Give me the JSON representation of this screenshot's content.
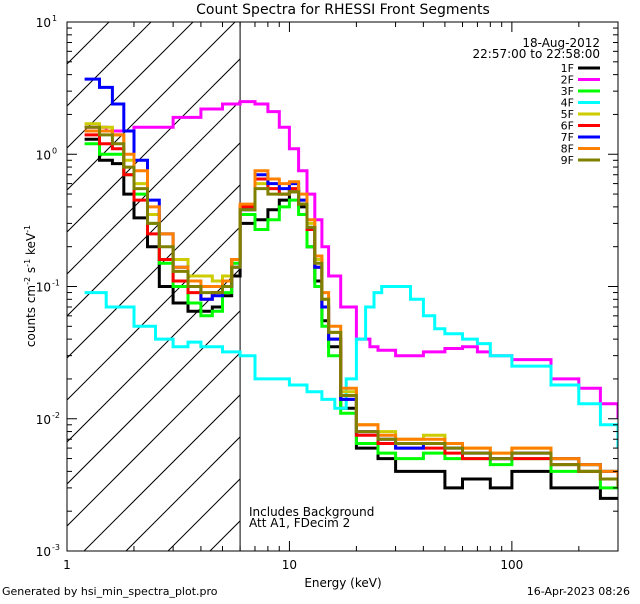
{
  "chart_data": {
    "type": "line",
    "title": "Count Spectra for RHESSI Front Segments",
    "xlabel": "Energy (keV)",
    "ylabel": {
      "base": "counts cm",
      "exp1": "-2",
      "mid1": " s",
      "exp2": "-1",
      "mid2": " keV",
      "exp3": "-1"
    },
    "x_scale": "log",
    "y_scale": "log",
    "xlim": [
      1,
      300
    ],
    "ylim": [
      0.001,
      10
    ],
    "x_ticks": [
      {
        "v": 1,
        "label": "1"
      },
      {
        "v": 10,
        "label": "10"
      },
      {
        "v": 100,
        "label": "100"
      }
    ],
    "y_ticks": [
      {
        "v": 0.001,
        "base": "10",
        "exp": "-3"
      },
      {
        "v": 0.01,
        "base": "10",
        "exp": "-2"
      },
      {
        "v": 0.1,
        "base": "10",
        "exp": "-1"
      },
      {
        "v": 1,
        "base": "10",
        "exp": "0"
      },
      {
        "v": 10,
        "base": "10",
        "exp": "1"
      }
    ],
    "date": "18-Aug-2012",
    "time_range": "22:57:00 to 22:58:00",
    "attenuator_line_keV": 6,
    "annotations": [
      "Includes Background",
      "Att A1, FDecim 2"
    ],
    "footer_left": "Generated by hsi_min_spectra_plot.pro",
    "footer_right": "16-Apr-2023 08:26",
    "series": [
      {
        "name": "1F",
        "color": "#000000",
        "x": [
          1.2,
          1.4,
          1.6,
          1.8,
          2.0,
          2.3,
          2.6,
          3.0,
          3.5,
          4.0,
          4.5,
          5.0,
          5.5,
          6.0,
          7.0,
          8.0,
          9.0,
          10.0,
          11,
          12,
          13,
          14,
          15,
          17,
          20,
          25,
          30,
          40,
          50,
          60,
          80,
          100,
          150,
          200,
          250,
          300
        ],
        "y": [
          1.3,
          0.9,
          0.85,
          0.5,
          0.33,
          0.2,
          0.1,
          0.075,
          0.065,
          0.065,
          0.07,
          0.085,
          0.12,
          0.3,
          0.32,
          0.38,
          0.45,
          0.52,
          0.4,
          0.2,
          0.11,
          0.055,
          0.035,
          0.012,
          0.006,
          0.005,
          0.004,
          0.004,
          0.003,
          0.0035,
          0.003,
          0.004,
          0.003,
          0.003,
          0.0025,
          0.0025
        ]
      },
      {
        "name": "2F",
        "color": "#ff00ff",
        "x": [
          1.2,
          1.5,
          2.0,
          3.0,
          4.0,
          5.0,
          6.0,
          7.0,
          8.0,
          9.0,
          10.0,
          11,
          12,
          13,
          14,
          15,
          17,
          20,
          23,
          25,
          30,
          40,
          50,
          60,
          70,
          80,
          100,
          150,
          200,
          250,
          300
        ],
        "y": [
          1.6,
          1.5,
          1.6,
          1.9,
          2.2,
          2.4,
          2.5,
          2.4,
          2.1,
          1.6,
          1.1,
          0.75,
          0.5,
          0.32,
          0.2,
          0.12,
          0.07,
          0.04,
          0.035,
          0.033,
          0.03,
          0.032,
          0.034,
          0.035,
          0.032,
          0.03,
          0.028,
          0.02,
          0.017,
          0.013,
          0.01
        ]
      },
      {
        "name": "3F",
        "color": "#00ff00",
        "x": [
          1.2,
          1.4,
          1.6,
          1.8,
          2.0,
          2.3,
          2.6,
          3.0,
          3.5,
          4.0,
          4.5,
          5.0,
          5.5,
          6.0,
          7.0,
          8.0,
          9.0,
          10.0,
          11,
          12,
          13,
          14,
          15,
          17,
          20,
          25,
          30,
          40,
          50,
          60,
          80,
          100,
          150,
          200,
          250,
          300
        ],
        "y": [
          1.2,
          1.0,
          1.0,
          0.7,
          0.5,
          0.3,
          0.15,
          0.1,
          0.075,
          0.06,
          0.065,
          0.09,
          0.15,
          0.35,
          0.27,
          0.32,
          0.4,
          0.45,
          0.35,
          0.2,
          0.1,
          0.05,
          0.03,
          0.011,
          0.0065,
          0.0055,
          0.005,
          0.0055,
          0.005,
          0.005,
          0.0045,
          0.005,
          0.004,
          0.004,
          0.003,
          0.003
        ]
      },
      {
        "name": "4F",
        "color": "#00ffff",
        "x": [
          1.2,
          1.5,
          2.0,
          2.5,
          3.0,
          3.5,
          4.0,
          5.0,
          6.0,
          7.0,
          8.0,
          10.0,
          12,
          14,
          16,
          18,
          20,
          22,
          24,
          26,
          28,
          30,
          35,
          40,
          45,
          50,
          60,
          70,
          80,
          100,
          150,
          200,
          250,
          300
        ],
        "y": [
          0.09,
          0.07,
          0.05,
          0.04,
          0.035,
          0.038,
          0.035,
          0.032,
          0.03,
          0.02,
          0.02,
          0.018,
          0.016,
          0.014,
          0.012,
          0.02,
          0.04,
          0.07,
          0.09,
          0.1,
          0.1,
          0.1,
          0.08,
          0.06,
          0.048,
          0.044,
          0.04,
          0.037,
          0.03,
          0.025,
          0.018,
          0.013,
          0.009,
          0.006
        ]
      },
      {
        "name": "5F",
        "color": "#cccc00",
        "x": [
          1.2,
          1.4,
          1.6,
          1.8,
          2.0,
          2.3,
          2.6,
          3.0,
          3.5,
          4.0,
          4.5,
          5.0,
          5.5,
          6.0,
          7.0,
          8.0,
          9.0,
          10.0,
          11,
          12,
          13,
          14,
          15,
          17,
          20,
          25,
          30,
          40,
          50,
          60,
          80,
          100,
          150,
          200,
          250,
          300
        ],
        "y": [
          1.7,
          1.6,
          1.4,
          0.9,
          0.6,
          0.35,
          0.25,
          0.16,
          0.12,
          0.12,
          0.11,
          0.12,
          0.16,
          0.4,
          0.6,
          0.55,
          0.5,
          0.55,
          0.45,
          0.3,
          0.16,
          0.08,
          0.045,
          0.016,
          0.009,
          0.008,
          0.007,
          0.0075,
          0.0065,
          0.006,
          0.0055,
          0.006,
          0.005,
          0.0045,
          0.004,
          0.0035
        ]
      },
      {
        "name": "6F",
        "color": "#ff0000",
        "x": [
          1.2,
          1.4,
          1.6,
          1.8,
          2.0,
          2.3,
          2.6,
          3.0,
          3.5,
          4.0,
          4.5,
          5.0,
          5.5,
          6.0,
          7.0,
          8.0,
          9.0,
          10.0,
          11,
          12,
          13,
          14,
          15,
          17,
          20,
          25,
          30,
          40,
          50,
          60,
          80,
          100,
          150,
          200,
          250,
          300
        ],
        "y": [
          1.4,
          1.2,
          1.1,
          0.7,
          0.45,
          0.25,
          0.16,
          0.11,
          0.09,
          0.08,
          0.09,
          0.11,
          0.16,
          0.4,
          0.65,
          0.55,
          0.5,
          0.55,
          0.42,
          0.27,
          0.14,
          0.07,
          0.04,
          0.014,
          0.0075,
          0.0065,
          0.006,
          0.006,
          0.0055,
          0.005,
          0.005,
          0.005,
          0.0045,
          0.004,
          0.0035,
          0.003
        ]
      },
      {
        "name": "7F",
        "color": "#0000ff",
        "x": [
          1.2,
          1.4,
          1.6,
          1.8,
          2.0,
          2.3,
          2.6,
          3.0,
          3.5,
          4.0,
          4.5,
          5.0,
          5.5,
          6.0,
          7.0,
          8.0,
          9.0,
          10.0,
          11,
          12,
          13,
          14,
          15,
          17,
          20,
          25,
          30,
          40,
          50,
          60,
          80,
          100,
          150,
          200,
          250,
          300
        ],
        "y": [
          3.7,
          3.2,
          2.4,
          1.5,
          0.9,
          0.45,
          0.25,
          0.14,
          0.1,
          0.08,
          0.085,
          0.1,
          0.14,
          0.38,
          0.7,
          0.6,
          0.55,
          0.6,
          0.45,
          0.28,
          0.14,
          0.07,
          0.04,
          0.014,
          0.008,
          0.007,
          0.006,
          0.0065,
          0.006,
          0.0055,
          0.005,
          0.0055,
          0.005,
          0.0045,
          0.004,
          0.0035
        ]
      },
      {
        "name": "8F",
        "color": "#ff8000",
        "x": [
          1.2,
          1.4,
          1.6,
          1.8,
          2.0,
          2.3,
          2.6,
          3.0,
          3.5,
          4.0,
          4.5,
          5.0,
          5.5,
          6.0,
          7.0,
          8.0,
          9.0,
          10.0,
          11,
          12,
          13,
          14,
          15,
          17,
          20,
          25,
          30,
          40,
          50,
          60,
          80,
          100,
          150,
          200,
          250,
          300
        ],
        "y": [
          1.5,
          1.5,
          1.4,
          1.0,
          0.75,
          0.4,
          0.25,
          0.14,
          0.11,
          0.1,
          0.1,
          0.11,
          0.16,
          0.42,
          0.75,
          0.65,
          0.6,
          0.62,
          0.5,
          0.32,
          0.17,
          0.09,
          0.05,
          0.017,
          0.009,
          0.0075,
          0.007,
          0.007,
          0.0065,
          0.006,
          0.0055,
          0.006,
          0.005,
          0.0045,
          0.004,
          0.0035
        ]
      },
      {
        "name": "9F",
        "color": "#808000",
        "x": [
          1.2,
          1.4,
          1.6,
          1.8,
          2.0,
          2.3,
          2.6,
          3.0,
          3.5,
          4.0,
          4.5,
          5.0,
          5.5,
          6.0,
          7.0,
          8.0,
          9.0,
          10.0,
          11,
          12,
          13,
          14,
          15,
          17,
          20,
          25,
          30,
          40,
          50,
          60,
          80,
          100,
          150,
          200,
          250,
          300
        ],
        "y": [
          1.6,
          1.4,
          1.2,
          0.8,
          0.55,
          0.3,
          0.2,
          0.13,
          0.1,
          0.09,
          0.09,
          0.1,
          0.14,
          0.38,
          0.55,
          0.5,
          0.5,
          0.52,
          0.42,
          0.28,
          0.15,
          0.08,
          0.045,
          0.015,
          0.008,
          0.007,
          0.0065,
          0.0065,
          0.006,
          0.0055,
          0.005,
          0.0055,
          0.0045,
          0.004,
          0.0035,
          0.003
        ]
      }
    ]
  }
}
